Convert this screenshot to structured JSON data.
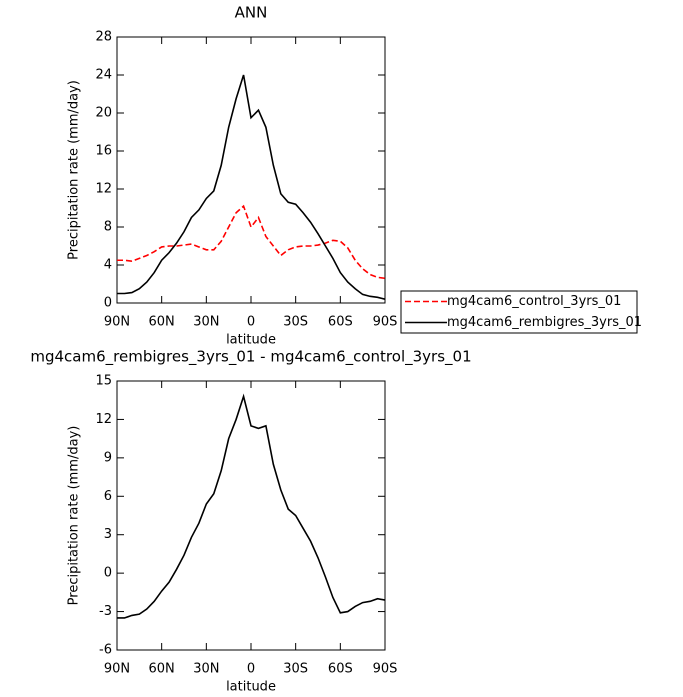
{
  "chart_data": [
    {
      "type": "line",
      "title": "ANN",
      "xlabel": "latitude",
      "ylabel": "Precipitation rate (mm/day)",
      "x": [
        90,
        85,
        80,
        75,
        70,
        65,
        60,
        55,
        50,
        45,
        40,
        35,
        30,
        25,
        20,
        15,
        10,
        5,
        0,
        -5,
        -10,
        -15,
        -20,
        -25,
        -30,
        -35,
        -40,
        -45,
        -50,
        -55,
        -60,
        -65,
        -70,
        -75,
        -80,
        -85,
        -90
      ],
      "series": [
        {
          "name": "mg4cam6_control_3yrs_01",
          "color": "#ff0000",
          "style": "dashed",
          "values": [
            4.5,
            4.5,
            4.4,
            4.7,
            5.0,
            5.4,
            5.9,
            6.0,
            6.0,
            6.1,
            6.2,
            5.9,
            5.6,
            5.6,
            6.5,
            8.0,
            9.5,
            10.2,
            8.0,
            9.0,
            7.0,
            6.0,
            5.0,
            5.6,
            5.9,
            6.0,
            6.0,
            6.1,
            6.3,
            6.6,
            6.5,
            5.8,
            4.5,
            3.6,
            3.0,
            2.7,
            2.6
          ]
        },
        {
          "name": "mg4cam6_rembigres_3yrs_01",
          "color": "#000000",
          "style": "solid",
          "values": [
            1.0,
            1.0,
            1.1,
            1.5,
            2.2,
            3.2,
            4.5,
            5.3,
            6.3,
            7.5,
            9.0,
            9.8,
            11.0,
            11.8,
            14.5,
            18.5,
            21.5,
            24.0,
            19.5,
            20.3,
            18.5,
            14.5,
            11.5,
            10.6,
            10.4,
            9.5,
            8.5,
            7.3,
            6.0,
            4.7,
            3.2,
            2.2,
            1.5,
            0.9,
            0.7,
            0.6,
            0.4
          ]
        }
      ],
      "xlim": [
        90,
        -90
      ],
      "xticks": [
        {
          "value": 90,
          "label": "90N"
        },
        {
          "value": 60,
          "label": "60N"
        },
        {
          "value": 30,
          "label": "30N"
        },
        {
          "value": 0,
          "label": "0"
        },
        {
          "value": -30,
          "label": "30S"
        },
        {
          "value": -60,
          "label": "60S"
        },
        {
          "value": -90,
          "label": "90S"
        }
      ],
      "ylim": [
        0,
        28
      ],
      "yticks": [
        0,
        4,
        8,
        12,
        16,
        20,
        24,
        28
      ],
      "legend": "right"
    },
    {
      "type": "line",
      "title": "mg4cam6_rembigres_3yrs_01 - mg4cam6_control_3yrs_01",
      "xlabel": "latitude",
      "ylabel": "Precipitation rate (mm/day)",
      "x": [
        90,
        85,
        80,
        75,
        70,
        65,
        60,
        55,
        50,
        45,
        40,
        35,
        30,
        25,
        20,
        15,
        10,
        5,
        0,
        -5,
        -10,
        -15,
        -20,
        -25,
        -30,
        -35,
        -40,
        -45,
        -50,
        -55,
        -60,
        -65,
        -70,
        -75,
        -80,
        -85,
        -90
      ],
      "series": [
        {
          "color": "#000000",
          "style": "solid",
          "values": [
            -3.5,
            -3.5,
            -3.3,
            -3.2,
            -2.8,
            -2.2,
            -1.4,
            -0.7,
            0.3,
            1.4,
            2.8,
            3.9,
            5.4,
            6.2,
            8.0,
            10.5,
            12.0,
            13.8,
            11.5,
            11.3,
            11.5,
            8.5,
            6.5,
            5.0,
            4.5,
            3.5,
            2.5,
            1.2,
            -0.3,
            -1.9,
            -3.1,
            -3.0,
            -2.6,
            -2.3,
            -2.2,
            -2.0,
            -2.1
          ]
        }
      ],
      "xlim": [
        90,
        -90
      ],
      "xticks": [
        {
          "value": 90,
          "label": "90N"
        },
        {
          "value": 60,
          "label": "60N"
        },
        {
          "value": 30,
          "label": "30N"
        },
        {
          "value": 0,
          "label": "0"
        },
        {
          "value": -30,
          "label": "30S"
        },
        {
          "value": -60,
          "label": "60S"
        },
        {
          "value": -90,
          "label": "90S"
        }
      ],
      "ylim": [
        -6,
        15
      ],
      "yticks": [
        -6,
        -3,
        0,
        3,
        6,
        9,
        12,
        15
      ]
    }
  ]
}
